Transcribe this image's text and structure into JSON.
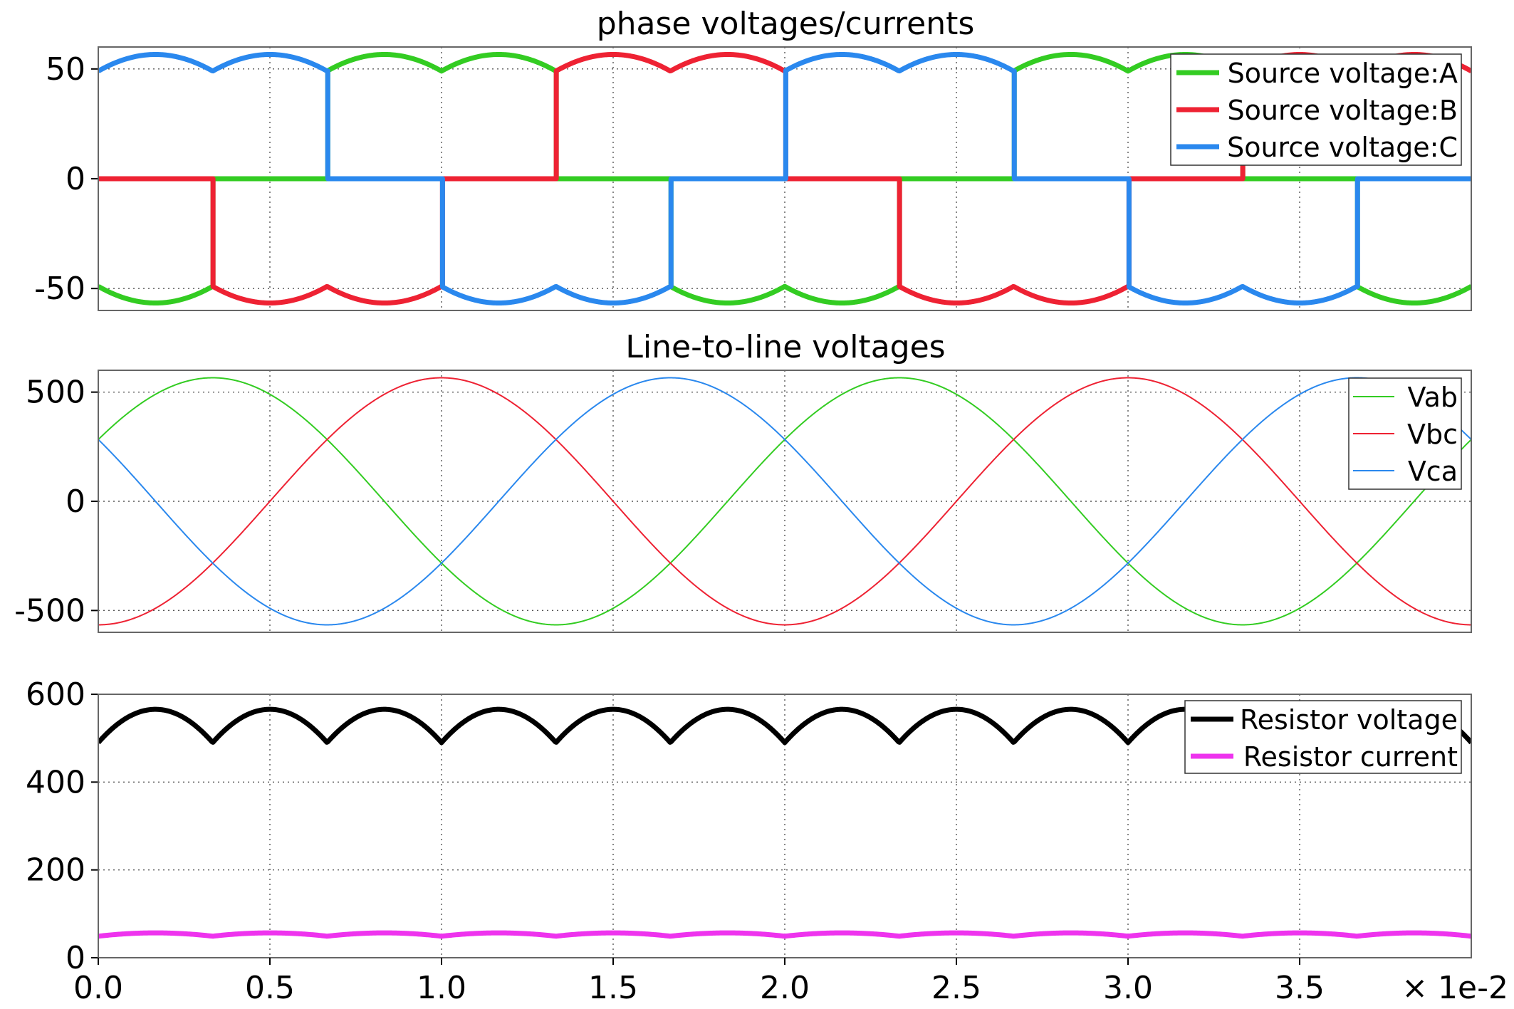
{
  "chart_data": [
    {
      "type": "line",
      "title": "phase voltages/currents",
      "xlim": [
        0,
        0.04
      ],
      "ylim": [
        -60,
        60
      ],
      "yticks": [
        50,
        0,
        -50
      ],
      "ytick_labels": [
        "50",
        "0",
        "-50"
      ],
      "grid": true,
      "legend_position": "top-right",
      "line_width": "thick",
      "waveform": "Phase voltages: each phase follows a 325 V-peak-relative commutation pattern; plotted level = the 56.6 (max of phase-to-phase/10) on top when the phase is the max, bottom when min, 0 otherwise",
      "series": [
        {
          "name": "Source voltage:A",
          "color": "#33cc22",
          "phase_deg": 0
        },
        {
          "name": "Source voltage:B",
          "color": "#ee2233",
          "phase_deg": -120
        },
        {
          "name": "Source voltage:C",
          "color": "#2a88ee",
          "phase_deg": 120
        }
      ]
    },
    {
      "type": "line",
      "title": "Line-to-line voltages",
      "xlim": [
        0,
        0.04
      ],
      "ylim": [
        -600,
        600
      ],
      "yticks": [
        500,
        0,
        -500
      ],
      "ytick_labels": [
        "500",
        "0",
        "-500"
      ],
      "grid": true,
      "legend_position": "top-right",
      "line_width": "thin",
      "amplitude": 565.7,
      "frequency_hz": 50,
      "series": [
        {
          "name": "Vab",
          "color": "#33cc22",
          "phase_deg": 30
        },
        {
          "name": "Vbc",
          "color": "#ee2233",
          "phase_deg": -90
        },
        {
          "name": "Vca",
          "color": "#2a88ee",
          "phase_deg": 150
        }
      ]
    },
    {
      "type": "line",
      "title": "",
      "xlim": [
        0,
        0.04
      ],
      "ylim": [
        0,
        600
      ],
      "yticks": [
        600,
        400,
        200,
        0
      ],
      "ytick_labels": [
        "600",
        "400",
        "200",
        "0"
      ],
      "grid": true,
      "legend_position": "top-right",
      "line_width": "thick",
      "series": [
        {
          "name": "Resistor voltage",
          "color": "#000000",
          "peak": 565.7,
          "min": 490
        },
        {
          "name": "Resistor current",
          "color": "#ee33ee",
          "peak": 56.6,
          "min": 49
        }
      ]
    }
  ],
  "x_axis": {
    "ticks": [
      0.0,
      0.5,
      1.0,
      1.5,
      2.0,
      2.5,
      3.0,
      3.5
    ],
    "tick_labels": [
      "0.0",
      "0.5",
      "1.0",
      "1.5",
      "2.0",
      "2.5",
      "3.0",
      "3.5"
    ],
    "multiplier_label": "× 1e-2"
  }
}
